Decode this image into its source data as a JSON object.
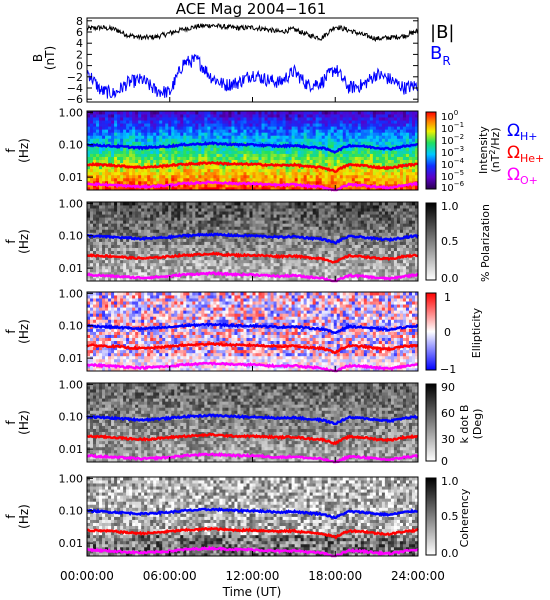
{
  "title": "ACE Mag 2004−161",
  "time_axis": {
    "label": "Time (UT)",
    "ticks": [
      "00:00:00",
      "06:00:00",
      "12:00:00",
      "18:00:00",
      "24:00:00"
    ],
    "tick_hours": [
      0,
      6,
      12,
      18,
      24
    ],
    "range_hours": [
      0,
      24
    ]
  },
  "chart_data": [
    {
      "type": "line",
      "ylabel_top": "B",
      "ylabel_bottom": "(nT)",
      "ylim": [
        -6.5,
        8.5
      ],
      "yticks": [
        "8",
        "6",
        "4",
        "2",
        "0",
        "−2",
        "−4",
        "−6"
      ],
      "ytick_values": [
        8,
        6,
        4,
        2,
        0,
        -2,
        -4,
        -6
      ],
      "series": [
        {
          "name": "|B|",
          "color": "#000000",
          "x": [
            0,
            1,
            2,
            3,
            4,
            5,
            6,
            7,
            8,
            9,
            10,
            11,
            12,
            13,
            14,
            15,
            16,
            17,
            18,
            19,
            20,
            21,
            22,
            23,
            24
          ],
          "values": [
            6.6,
            6.8,
            6.5,
            5.4,
            5.0,
            5.1,
            5.8,
            6.5,
            7.0,
            7.2,
            6.9,
            6.7,
            6.8,
            6.5,
            6.0,
            6.5,
            5.5,
            4.9,
            7.0,
            6.3,
            5.5,
            4.8,
            5.0,
            5.3,
            6.2
          ]
        },
        {
          "name": "B",
          "subscript": "R",
          "color": "#0000ff",
          "x": [
            0,
            1,
            2,
            3,
            4,
            5,
            6,
            7,
            8,
            9,
            10,
            11,
            12,
            13,
            14,
            15,
            16,
            17,
            18,
            19,
            20,
            21,
            22,
            23,
            24
          ],
          "values": [
            -1.0,
            -4.5,
            -5.0,
            -3.0,
            -2.5,
            -4.5,
            -4.8,
            0.5,
            1.0,
            -2.0,
            -3.5,
            -3.0,
            -1.5,
            -2.5,
            -3.0,
            -1.0,
            -3.5,
            -3.0,
            -0.5,
            -4.0,
            -3.5,
            -1.5,
            -2.5,
            -4.0,
            -3.5
          ]
        }
      ]
    },
    {
      "type": "heatmap",
      "variable": "Intensity (nT²/Hz)",
      "ylabel_top": "f",
      "ylabel_bottom": "(Hz)",
      "yscale": "log",
      "ylim": [
        0.004,
        1.1
      ],
      "yticks": [
        "1.00",
        "0.10",
        "0.01"
      ],
      "ytick_values": [
        1.0,
        0.1,
        0.01
      ],
      "colorbar": {
        "colormap": "rainbow",
        "scale": "log",
        "range": [
          1e-06,
          1.0
        ],
        "tick_bases": [
          "10",
          "10",
          "10",
          "10",
          "10",
          "10",
          "10"
        ],
        "tick_exponents": [
          "0",
          "−1",
          "−2",
          "−3",
          "−4",
          "−5",
          "−6"
        ],
        "label_main": "Intensity",
        "label_unit_a": "(nT",
        "label_unit_sup": "2",
        "label_unit_b": "/Hz)"
      }
    },
    {
      "type": "heatmap",
      "variable": "% Polarization",
      "ylabel_top": "f",
      "ylabel_bottom": "(Hz)",
      "yscale": "log",
      "ylim": [
        0.004,
        1.1
      ],
      "yticks": [
        "1.00",
        "0.10",
        "0.01"
      ],
      "ytick_values": [
        1.0,
        0.1,
        0.01
      ],
      "colorbar": {
        "colormap": "grayscale",
        "range": [
          0.0,
          1.0
        ],
        "ticks": [
          "1.0",
          "0.5",
          "0.0"
        ],
        "tick_values": [
          1.0,
          0.5,
          0.0
        ],
        "label": "% Polarization"
      }
    },
    {
      "type": "heatmap",
      "variable": "Ellipticity",
      "ylabel_top": "f",
      "ylabel_bottom": "(Hz)",
      "yscale": "log",
      "ylim": [
        0.004,
        1.1
      ],
      "yticks": [
        "1.00",
        "0.10",
        "0.01"
      ],
      "ytick_values": [
        1.0,
        0.1,
        0.01
      ],
      "colorbar": {
        "colormap": "blue-white-red",
        "range": [
          -1,
          1
        ],
        "ticks": [
          "1",
          "0",
          "−1"
        ],
        "tick_values": [
          1,
          0,
          -1
        ],
        "label": "Ellipticity"
      }
    },
    {
      "type": "heatmap",
      "variable": "k dot B (Deg)",
      "ylabel_top": "f",
      "ylabel_bottom": "(Hz)",
      "yscale": "log",
      "ylim": [
        0.004,
        1.1
      ],
      "yticks": [
        "1.00",
        "0.10",
        "0.01"
      ],
      "ytick_values": [
        1.0,
        0.1,
        0.01
      ],
      "colorbar": {
        "colormap": "grayscale",
        "range": [
          0,
          90
        ],
        "ticks": [
          "90",
          "60",
          "30",
          "0"
        ],
        "tick_values": [
          90,
          60,
          30,
          0
        ],
        "label_a": "k dot B",
        "label_b": "(Deg)"
      }
    },
    {
      "type": "heatmap",
      "variable": "Coherency",
      "ylabel_top": "f",
      "ylabel_bottom": "(Hz)",
      "yscale": "log",
      "ylim": [
        0.004,
        1.1
      ],
      "yticks": [
        "1.00",
        "0.10",
        "0.01"
      ],
      "ytick_values": [
        1.0,
        0.1,
        0.01
      ],
      "colorbar": {
        "colormap": "grayscale",
        "range": [
          0.0,
          1.0
        ],
        "ticks": [
          "1.0",
          "0.5",
          "0.0"
        ],
        "tick_values": [
          1.0,
          0.5,
          0.0
        ],
        "label": "Coherency"
      }
    }
  ],
  "gyrofrequency_lines": {
    "x": [
      0,
      1,
      2,
      3,
      4,
      5,
      6,
      7,
      8,
      9,
      10,
      11,
      12,
      13,
      14,
      15,
      16,
      17,
      18,
      19,
      20,
      21,
      22,
      23,
      24
    ],
    "H+": [
      0.1,
      0.095,
      0.09,
      0.085,
      0.08,
      0.085,
      0.09,
      0.1,
      0.105,
      0.11,
      0.105,
      0.1,
      0.1,
      0.095,
      0.09,
      0.095,
      0.085,
      0.08,
      0.06,
      0.095,
      0.09,
      0.08,
      0.075,
      0.09,
      0.1
    ],
    "He+": [
      0.025,
      0.024,
      0.023,
      0.021,
      0.02,
      0.021,
      0.023,
      0.025,
      0.026,
      0.028,
      0.026,
      0.025,
      0.025,
      0.024,
      0.023,
      0.024,
      0.021,
      0.02,
      0.015,
      0.024,
      0.023,
      0.02,
      0.019,
      0.023,
      0.025
    ],
    "O+": [
      0.0063,
      0.0059,
      0.0056,
      0.0053,
      0.005,
      0.0053,
      0.0056,
      0.0063,
      0.0066,
      0.0069,
      0.0066,
      0.0063,
      0.0063,
      0.0059,
      0.0056,
      0.0059,
      0.0053,
      0.005,
      0.0038,
      0.0059,
      0.0056,
      0.005,
      0.0047,
      0.0056,
      0.0063
    ]
  },
  "legend": [
    {
      "symbol": "Ω",
      "subscript": "H+",
      "color": "#0000ff"
    },
    {
      "symbol": "Ω",
      "subscript": "He+",
      "color": "#ff0000"
    },
    {
      "symbol": "Ω",
      "subscript": "O+",
      "color": "#ff00ff"
    }
  ]
}
